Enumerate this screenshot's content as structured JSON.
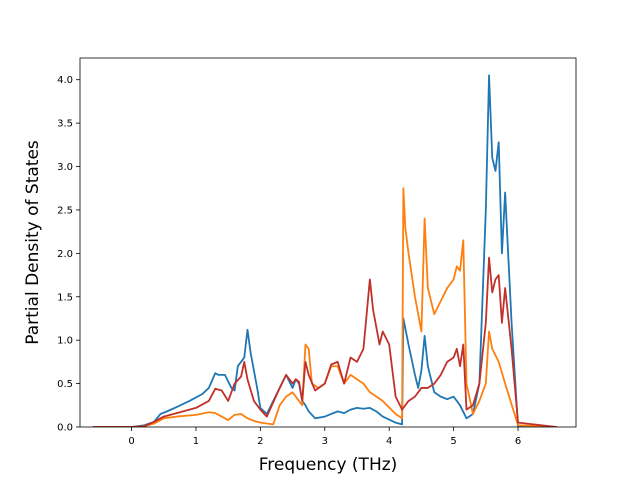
{
  "chart_data": {
    "type": "line",
    "title": "",
    "xlabel": "Frequency (THz)",
    "ylabel": "Partial Density of States",
    "xlim": [
      -0.8,
      6.9
    ],
    "ylim": [
      0,
      4.25
    ],
    "xticks": [
      0,
      1,
      2,
      3,
      4,
      5,
      6
    ],
    "yticks": [
      0.0,
      0.5,
      1.0,
      1.5,
      2.0,
      2.5,
      3.0,
      3.5,
      4.0
    ],
    "xtick_labels": [
      "0",
      "1",
      "2",
      "3",
      "4",
      "5",
      "6"
    ],
    "ytick_labels": [
      "0.0",
      "0.5",
      "1.0",
      "1.5",
      "2.0",
      "2.5",
      "3.0",
      "3.5",
      "4.0"
    ],
    "grid": false,
    "legend": "none",
    "series": [
      {
        "color": "#1f77b4",
        "x": [
          -0.6,
          0.0,
          0.2,
          0.35,
          0.45,
          0.55,
          0.7,
          0.9,
          1.1,
          1.2,
          1.3,
          1.35,
          1.45,
          1.55,
          1.6,
          1.65,
          1.75,
          1.8,
          1.85,
          1.95,
          2.0,
          2.1,
          2.3,
          2.4,
          2.5,
          2.55,
          2.6,
          2.65,
          2.7,
          2.75,
          2.85,
          3.0,
          3.2,
          3.3,
          3.4,
          3.5,
          3.6,
          3.7,
          3.8,
          3.9,
          4.1,
          4.2,
          4.22,
          4.3,
          4.4,
          4.45,
          4.5,
          4.55,
          4.6,
          4.7,
          4.8,
          4.9,
          5.0,
          5.1,
          5.2,
          5.3,
          5.4,
          5.45,
          5.5,
          5.55,
          5.6,
          5.65,
          5.7,
          5.75,
          5.8,
          5.9,
          6.0,
          6.6
        ],
        "y": [
          0,
          0,
          0.02,
          0.06,
          0.15,
          0.18,
          0.23,
          0.3,
          0.38,
          0.45,
          0.62,
          0.6,
          0.6,
          0.45,
          0.42,
          0.7,
          0.8,
          1.12,
          0.85,
          0.45,
          0.22,
          0.15,
          0.45,
          0.6,
          0.45,
          0.55,
          0.5,
          0.3,
          0.25,
          0.18,
          0.1,
          0.12,
          0.18,
          0.16,
          0.2,
          0.22,
          0.21,
          0.22,
          0.18,
          0.12,
          0.05,
          0.03,
          1.25,
          0.95,
          0.6,
          0.45,
          0.65,
          1.05,
          0.7,
          0.4,
          0.35,
          0.32,
          0.35,
          0.25,
          0.1,
          0.15,
          0.5,
          1.5,
          2.5,
          4.05,
          3.1,
          2.95,
          3.28,
          2.0,
          2.7,
          1.2,
          0,
          0
        ]
      },
      {
        "color": "#ff7f0e",
        "x": [
          -0.6,
          0.0,
          0.2,
          0.35,
          0.5,
          0.7,
          1.0,
          1.2,
          1.3,
          1.4,
          1.5,
          1.6,
          1.7,
          1.8,
          1.9,
          2.0,
          2.2,
          2.3,
          2.4,
          2.5,
          2.6,
          2.65,
          2.7,
          2.75,
          2.8,
          2.9,
          3.0,
          3.1,
          3.2,
          3.3,
          3.4,
          3.5,
          3.6,
          3.7,
          3.9,
          4.1,
          4.2,
          4.22,
          4.25,
          4.3,
          4.4,
          4.5,
          4.55,
          4.6,
          4.7,
          4.8,
          4.9,
          5.0,
          5.05,
          5.1,
          5.15,
          5.2,
          5.3,
          5.4,
          5.5,
          5.55,
          5.6,
          5.7,
          5.8,
          6.0,
          6.6
        ],
        "y": [
          0,
          0,
          0.01,
          0.04,
          0.1,
          0.12,
          0.14,
          0.17,
          0.16,
          0.12,
          0.08,
          0.14,
          0.15,
          0.1,
          0.07,
          0.05,
          0.03,
          0.25,
          0.35,
          0.4,
          0.3,
          0.25,
          0.95,
          0.9,
          0.5,
          0.45,
          0.5,
          0.7,
          0.7,
          0.5,
          0.6,
          0.55,
          0.5,
          0.4,
          0.3,
          0.15,
          0.1,
          2.75,
          2.3,
          2.0,
          1.5,
          1.1,
          2.4,
          1.6,
          1.3,
          1.45,
          1.6,
          1.7,
          1.85,
          1.8,
          2.15,
          0.5,
          0.15,
          0.3,
          0.5,
          1.1,
          0.9,
          0.75,
          0.5,
          0.02,
          0
        ]
      },
      {
        "color": "#c1312a",
        "x": [
          -0.6,
          0.0,
          0.2,
          0.35,
          0.5,
          0.7,
          1.0,
          1.2,
          1.3,
          1.4,
          1.5,
          1.6,
          1.7,
          1.75,
          1.8,
          1.9,
          2.0,
          2.1,
          2.3,
          2.4,
          2.5,
          2.55,
          2.6,
          2.65,
          2.7,
          2.75,
          2.85,
          3.0,
          3.1,
          3.2,
          3.3,
          3.4,
          3.5,
          3.6,
          3.65,
          3.7,
          3.75,
          3.85,
          3.9,
          4.0,
          4.1,
          4.2,
          4.3,
          4.4,
          4.5,
          4.6,
          4.7,
          4.8,
          4.9,
          5.0,
          5.05,
          5.1,
          5.15,
          5.2,
          5.3,
          5.4,
          5.5,
          5.55,
          5.6,
          5.65,
          5.7,
          5.75,
          5.8,
          5.9,
          6.0,
          6.6
        ],
        "y": [
          0,
          0,
          0.01,
          0.06,
          0.12,
          0.16,
          0.22,
          0.3,
          0.44,
          0.42,
          0.3,
          0.5,
          0.58,
          0.75,
          0.55,
          0.3,
          0.2,
          0.12,
          0.45,
          0.6,
          0.5,
          0.55,
          0.52,
          0.3,
          0.75,
          0.6,
          0.42,
          0.5,
          0.72,
          0.75,
          0.5,
          0.8,
          0.75,
          0.9,
          1.3,
          1.7,
          1.35,
          0.95,
          1.1,
          0.95,
          0.35,
          0.2,
          0.3,
          0.35,
          0.45,
          0.45,
          0.5,
          0.6,
          0.75,
          0.8,
          0.9,
          0.7,
          0.95,
          0.2,
          0.25,
          0.5,
          1.2,
          1.95,
          1.55,
          1.7,
          1.75,
          1.2,
          1.6,
          0.9,
          0.05,
          0
        ]
      }
    ]
  }
}
